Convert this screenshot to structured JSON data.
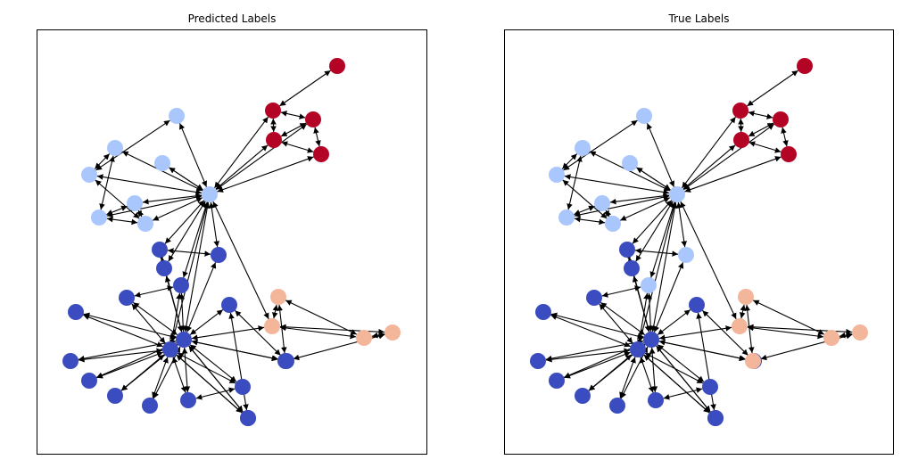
{
  "colors": {
    "dark_blue": "#3b4cc0",
    "light_blue": "#aac7fd",
    "salmon": "#f4b69a",
    "red": "#b40426",
    "edge": "#000000"
  },
  "panels": [
    {
      "title": "Predicted Labels",
      "nodes": [
        {
          "id": 0,
          "c": "dark_blue"
        },
        {
          "id": 1,
          "c": "dark_blue"
        },
        {
          "id": 2,
          "c": "light_blue"
        },
        {
          "id": 3,
          "c": "dark_blue"
        },
        {
          "id": 4,
          "c": "dark_blue"
        },
        {
          "id": 5,
          "c": "dark_blue"
        },
        {
          "id": 6,
          "c": "dark_blue"
        },
        {
          "id": 7,
          "c": "dark_blue"
        },
        {
          "id": 8,
          "c": "light_blue"
        },
        {
          "id": 9,
          "c": "light_blue"
        },
        {
          "id": 10,
          "c": "dark_blue"
        },
        {
          "id": 11,
          "c": "dark_blue"
        },
        {
          "id": 12,
          "c": "dark_blue"
        },
        {
          "id": 13,
          "c": "dark_blue"
        },
        {
          "id": 14,
          "c": "light_blue"
        },
        {
          "id": 15,
          "c": "light_blue"
        },
        {
          "id": 16,
          "c": "dark_blue"
        },
        {
          "id": 17,
          "c": "dark_blue"
        },
        {
          "id": 18,
          "c": "light_blue"
        },
        {
          "id": 19,
          "c": "dark_blue"
        },
        {
          "id": 20,
          "c": "light_blue"
        },
        {
          "id": 21,
          "c": "dark_blue"
        },
        {
          "id": 22,
          "c": "light_blue"
        },
        {
          "id": 23,
          "c": "red"
        },
        {
          "id": 24,
          "c": "salmon"
        },
        {
          "id": 25,
          "c": "salmon"
        },
        {
          "id": 26,
          "c": "red"
        },
        {
          "id": 27,
          "c": "red"
        },
        {
          "id": 28,
          "c": "salmon"
        },
        {
          "id": 29,
          "c": "red"
        },
        {
          "id": 30,
          "c": "dark_blue"
        },
        {
          "id": 31,
          "c": "salmon"
        },
        {
          "id": 32,
          "c": "dark_blue"
        },
        {
          "id": 33,
          "c": "red"
        },
        {
          "id": 34,
          "c": "dark_blue"
        },
        {
          "id": 35,
          "c": "dark_blue"
        }
      ]
    },
    {
      "title": "True Labels",
      "nodes": [
        {
          "id": 0,
          "c": "dark_blue"
        },
        {
          "id": 1,
          "c": "dark_blue"
        },
        {
          "id": 2,
          "c": "light_blue"
        },
        {
          "id": 3,
          "c": "dark_blue"
        },
        {
          "id": 4,
          "c": "dark_blue"
        },
        {
          "id": 5,
          "c": "dark_blue"
        },
        {
          "id": 6,
          "c": "dark_blue"
        },
        {
          "id": 7,
          "c": "dark_blue"
        },
        {
          "id": 8,
          "c": "light_blue"
        },
        {
          "id": 9,
          "c": "light_blue"
        },
        {
          "id": 10,
          "c": "dark_blue"
        },
        {
          "id": 11,
          "c": "dark_blue"
        },
        {
          "id": 12,
          "c": "dark_blue"
        },
        {
          "id": 13,
          "c": "light_blue"
        },
        {
          "id": 14,
          "c": "light_blue"
        },
        {
          "id": 15,
          "c": "light_blue"
        },
        {
          "id": 16,
          "c": "dark_blue"
        },
        {
          "id": 17,
          "c": "dark_blue"
        },
        {
          "id": 18,
          "c": "light_blue"
        },
        {
          "id": 19,
          "c": "dark_blue"
        },
        {
          "id": 20,
          "c": "light_blue"
        },
        {
          "id": 21,
          "c": "light_blue"
        },
        {
          "id": 22,
          "c": "light_blue"
        },
        {
          "id": 23,
          "c": "red"
        },
        {
          "id": 24,
          "c": "salmon"
        },
        {
          "id": 25,
          "c": "salmon"
        },
        {
          "id": 26,
          "c": "red"
        },
        {
          "id": 27,
          "c": "red"
        },
        {
          "id": 28,
          "c": "salmon"
        },
        {
          "id": 29,
          "c": "red"
        },
        {
          "id": 30,
          "c": "dark_blue"
        },
        {
          "id": 31,
          "c": "salmon"
        },
        {
          "id": 32,
          "c": "dark_blue"
        },
        {
          "id": 33,
          "c": "red"
        },
        {
          "id": 34,
          "c": "dark_blue"
        },
        {
          "id": 35,
          "c": "salmon"
        }
      ]
    }
  ],
  "edges": [
    [
      0,
      1
    ],
    [
      0,
      3
    ],
    [
      0,
      4
    ],
    [
      0,
      5
    ],
    [
      0,
      6
    ],
    [
      0,
      7
    ],
    [
      0,
      10
    ],
    [
      0,
      11
    ],
    [
      0,
      12
    ],
    [
      0,
      13
    ],
    [
      0,
      16
    ],
    [
      0,
      17
    ],
    [
      0,
      19
    ],
    [
      0,
      30
    ],
    [
      0,
      32
    ],
    [
      0,
      34
    ],
    [
      0,
      35
    ],
    [
      0,
      24
    ],
    [
      0,
      2
    ],
    [
      0,
      21
    ],
    [
      1,
      3
    ],
    [
      1,
      4
    ],
    [
      1,
      5
    ],
    [
      1,
      6
    ],
    [
      1,
      7
    ],
    [
      1,
      12
    ],
    [
      1,
      13
    ],
    [
      1,
      16
    ],
    [
      1,
      17
    ],
    [
      1,
      30
    ],
    [
      1,
      34
    ],
    [
      1,
      2
    ],
    [
      16,
      17
    ],
    [
      32,
      34
    ],
    [
      32,
      19
    ],
    [
      35,
      25
    ],
    [
      35,
      31
    ],
    [
      2,
      9
    ],
    [
      2,
      8
    ],
    [
      2,
      14
    ],
    [
      2,
      15
    ],
    [
      2,
      18
    ],
    [
      2,
      20
    ],
    [
      2,
      22
    ],
    [
      2,
      13
    ],
    [
      2,
      21
    ],
    [
      2,
      24
    ],
    [
      2,
      10
    ],
    [
      2,
      11
    ],
    [
      9,
      14
    ],
    [
      9,
      15
    ],
    [
      9,
      18
    ],
    [
      20,
      15
    ],
    [
      20,
      14
    ],
    [
      22,
      2
    ],
    [
      14,
      18
    ],
    [
      15,
      8
    ],
    [
      2,
      23
    ],
    [
      2,
      26
    ],
    [
      2,
      27
    ],
    [
      2,
      29
    ],
    [
      23,
      26
    ],
    [
      23,
      27
    ],
    [
      23,
      33
    ],
    [
      26,
      29
    ],
    [
      27,
      29
    ],
    [
      26,
      27
    ],
    [
      24,
      25
    ],
    [
      24,
      28
    ],
    [
      24,
      31
    ],
    [
      28,
      31
    ],
    [
      25,
      28
    ],
    [
      12,
      13
    ],
    [
      10,
      11
    ],
    [
      11,
      21
    ]
  ]
}
